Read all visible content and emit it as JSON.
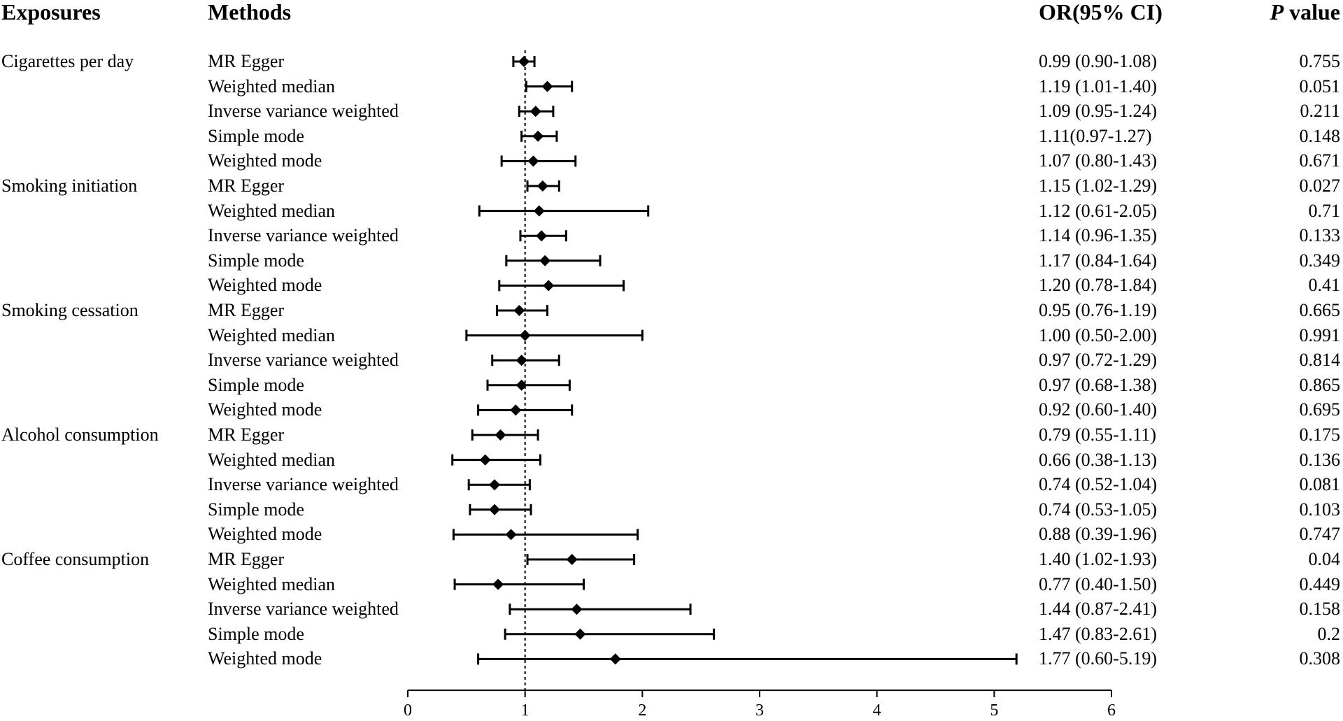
{
  "headers": {
    "exposures": "Exposures",
    "methods": "Methods",
    "or_ci": "OR(95% CI)",
    "p_italic": "P",
    "p_rest": " value"
  },
  "chart_data": {
    "type": "forest",
    "reference_line": 1,
    "xlim": [
      0,
      6
    ],
    "xticks": [
      0,
      1,
      2,
      3,
      4,
      5,
      6
    ],
    "groups": [
      {
        "exposure": "Cigarettes per day",
        "rows": [
          {
            "method": "MR Egger",
            "or": 0.99,
            "lo": 0.9,
            "hi": 1.08,
            "or_text": "0.99 (0.90-1.08)",
            "p": "0.755"
          },
          {
            "method": "Weighted median",
            "or": 1.19,
            "lo": 1.01,
            "hi": 1.4,
            "or_text": "1.19 (1.01-1.40)",
            "p": "0.051"
          },
          {
            "method": "Inverse variance weighted",
            "or": 1.09,
            "lo": 0.95,
            "hi": 1.24,
            "or_text": "1.09 (0.95-1.24)",
            "p": "0.211"
          },
          {
            "method": "Simple mode",
            "or": 1.11,
            "lo": 0.97,
            "hi": 1.27,
            "or_text": "1.11(0.97-1.27)",
            "p": "0.148"
          },
          {
            "method": "Weighted mode",
            "or": 1.07,
            "lo": 0.8,
            "hi": 1.43,
            "or_text": "1.07 (0.80-1.43)",
            "p": "0.671"
          }
        ]
      },
      {
        "exposure": "Smoking initiation",
        "rows": [
          {
            "method": "MR Egger",
            "or": 1.15,
            "lo": 1.02,
            "hi": 1.29,
            "or_text": "1.15 (1.02-1.29)",
            "p": "0.027"
          },
          {
            "method": "Weighted median",
            "or": 1.12,
            "lo": 0.61,
            "hi": 2.05,
            "or_text": "1.12 (0.61-2.05)",
            "p": "0.71"
          },
          {
            "method": "Inverse variance weighted",
            "or": 1.14,
            "lo": 0.96,
            "hi": 1.35,
            "or_text": "1.14 (0.96-1.35)",
            "p": "0.133"
          },
          {
            "method": "Simple mode",
            "or": 1.17,
            "lo": 0.84,
            "hi": 1.64,
            "or_text": "1.17 (0.84-1.64)",
            "p": "0.349"
          },
          {
            "method": "Weighted mode",
            "or": 1.2,
            "lo": 0.78,
            "hi": 1.84,
            "or_text": "1.20 (0.78-1.84)",
            "p": "0.41"
          }
        ]
      },
      {
        "exposure": "Smoking cessation",
        "rows": [
          {
            "method": "MR Egger",
            "or": 0.95,
            "lo": 0.76,
            "hi": 1.19,
            "or_text": "0.95 (0.76-1.19)",
            "p": "0.665"
          },
          {
            "method": "Weighted median",
            "or": 1.0,
            "lo": 0.5,
            "hi": 2.0,
            "or_text": "1.00 (0.50-2.00)",
            "p": "0.991"
          },
          {
            "method": "Inverse variance weighted",
            "or": 0.97,
            "lo": 0.72,
            "hi": 1.29,
            "or_text": "0.97 (0.72-1.29)",
            "p": "0.814"
          },
          {
            "method": "Simple mode",
            "or": 0.97,
            "lo": 0.68,
            "hi": 1.38,
            "or_text": "0.97 (0.68-1.38)",
            "p": "0.865"
          },
          {
            "method": "Weighted mode",
            "or": 0.92,
            "lo": 0.6,
            "hi": 1.4,
            "or_text": "0.92 (0.60-1.40)",
            "p": "0.695"
          }
        ]
      },
      {
        "exposure": "Alcohol consumption",
        "rows": [
          {
            "method": "MR Egger",
            "or": 0.79,
            "lo": 0.55,
            "hi": 1.11,
            "or_text": "0.79 (0.55-1.11)",
            "p": "0.175"
          },
          {
            "method": "Weighted median",
            "or": 0.66,
            "lo": 0.38,
            "hi": 1.13,
            "or_text": "0.66 (0.38-1.13)",
            "p": "0.136"
          },
          {
            "method": "Inverse variance weighted",
            "or": 0.74,
            "lo": 0.52,
            "hi": 1.04,
            "or_text": "0.74 (0.52-1.04)",
            "p": "0.081"
          },
          {
            "method": "Simple mode",
            "or": 0.74,
            "lo": 0.53,
            "hi": 1.05,
            "or_text": "0.74 (0.53-1.05)",
            "p": "0.103"
          },
          {
            "method": "Weighted mode",
            "or": 0.88,
            "lo": 0.39,
            "hi": 1.96,
            "or_text": "0.88 (0.39-1.96)",
            "p": "0.747"
          }
        ]
      },
      {
        "exposure": "Coffee consumption",
        "rows": [
          {
            "method": "MR Egger",
            "or": 1.4,
            "lo": 1.02,
            "hi": 1.93,
            "or_text": "1.40 (1.02-1.93)",
            "p": "0.04"
          },
          {
            "method": "Weighted median",
            "or": 0.77,
            "lo": 0.4,
            "hi": 1.5,
            "or_text": "0.77 (0.40-1.50)",
            "p": "0.449"
          },
          {
            "method": "Inverse variance weighted",
            "or": 1.44,
            "lo": 0.87,
            "hi": 2.41,
            "or_text": "1.44 (0.87-2.41)",
            "p": "0.158"
          },
          {
            "method": "Simple mode",
            "or": 1.47,
            "lo": 0.83,
            "hi": 2.61,
            "or_text": "1.47 (0.83-2.61)",
            "p": "0.2"
          },
          {
            "method": "Weighted mode",
            "or": 1.77,
            "lo": 0.6,
            "hi": 5.19,
            "or_text": "1.77 (0.60-5.19)",
            "p": "0.308"
          }
        ]
      }
    ]
  }
}
